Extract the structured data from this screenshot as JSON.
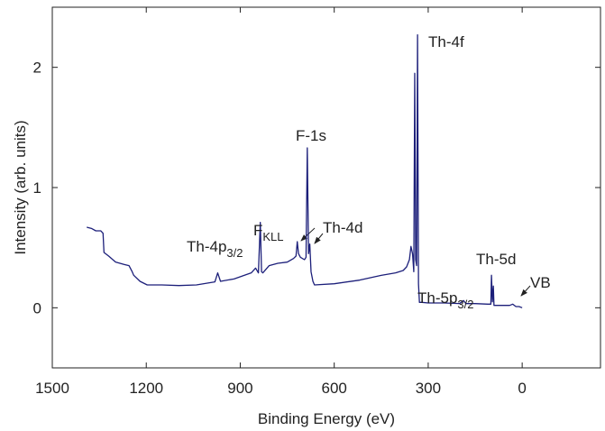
{
  "chart_data": {
    "type": "line",
    "x_label": "Binding Energy (eV)",
    "y_label": "Intensity (arb. units)",
    "color": "#1c1f7a",
    "xlim": [
      1500,
      -250
    ],
    "ylim": [
      -0.5,
      2.5
    ],
    "xticks": [
      1500,
      1200,
      900,
      600,
      300,
      0
    ],
    "yticks": [
      0,
      1,
      2
    ],
    "x": [
      1390,
      1375,
      1361,
      1345,
      1338,
      1335,
      1320,
      1298,
      1270,
      1255,
      1245,
      1240,
      1220,
      1197,
      1150,
      1096,
      1040,
      981,
      972,
      963,
      920,
      865,
      851,
      842,
      836,
      832,
      828,
      808,
      780,
      750,
      730,
      722,
      718,
      714,
      708,
      695,
      690,
      686,
      682,
      678,
      674,
      668,
      663,
      600,
      519,
      450,
      404,
      380,
      369,
      360,
      355,
      350,
      346,
      343,
      340,
      337,
      334,
      331,
      328,
      320,
      300,
      250,
      200,
      187,
      180,
      150,
      110,
      100,
      98,
      95,
      92,
      90,
      70,
      40,
      30,
      20,
      10,
      0
    ],
    "values": [
      0.67,
      0.66,
      0.64,
      0.64,
      0.62,
      0.46,
      0.43,
      0.38,
      0.36,
      0.35,
      0.3,
      0.27,
      0.22,
      0.19,
      0.19,
      0.185,
      0.19,
      0.215,
      0.29,
      0.22,
      0.24,
      0.29,
      0.33,
      0.29,
      0.71,
      0.3,
      0.29,
      0.35,
      0.37,
      0.38,
      0.41,
      0.43,
      0.55,
      0.45,
      0.42,
      0.4,
      0.42,
      1.33,
      0.45,
      0.53,
      0.3,
      0.22,
      0.19,
      0.2,
      0.23,
      0.27,
      0.29,
      0.31,
      0.34,
      0.4,
      0.51,
      0.45,
      0.3,
      1.95,
      0.4,
      0.35,
      2.27,
      0.2,
      0.045,
      0.045,
      0.04,
      0.04,
      0.035,
      0.06,
      0.035,
      0.035,
      0.03,
      0.03,
      0.27,
      0.05,
      0.18,
      0.02,
      0.02,
      0.02,
      0.03,
      0.01,
      0.01,
      0.0
    ],
    "annotations": [
      {
        "text": "Th-4f"
      },
      {
        "text": "F-1s"
      },
      {
        "text": "Th-4d"
      },
      {
        "text": "F",
        "sub": "KLL"
      },
      {
        "text": "Th-4p",
        "sub": "3/2"
      },
      {
        "text": "Th-5p",
        "sub": "3/2"
      },
      {
        "text": "Th-5d"
      },
      {
        "text": "VB"
      }
    ]
  }
}
